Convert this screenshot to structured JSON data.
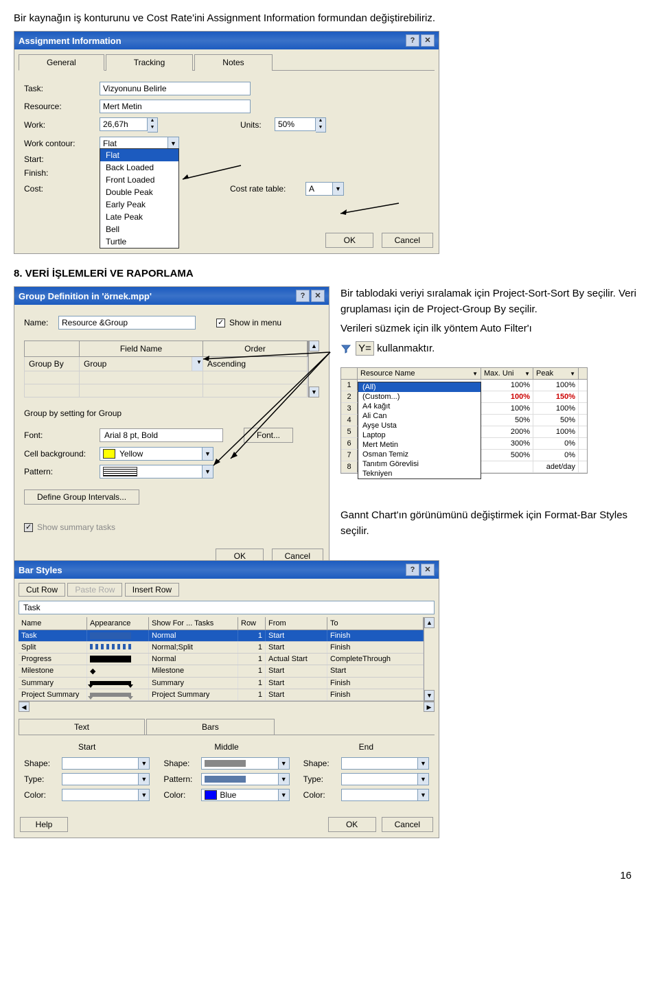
{
  "intro_text": "Bir kaynağın iş konturunu ve Cost Rate'ini Assignment Information formundan değiştirebiliriz.",
  "assignment_dialog": {
    "title": "Assignment Information",
    "tabs": [
      "General",
      "Tracking",
      "Notes"
    ],
    "fields": {
      "task_lbl": "Task:",
      "task_val": "Vizyonunu Belirle",
      "resource_lbl": "Resource:",
      "resource_val": "Mert Metin",
      "work_lbl": "Work:",
      "work_val": "26,67h",
      "units_lbl": "Units:",
      "units_val": "50%",
      "contour_lbl": "Work contour:",
      "contour_val": "Flat",
      "start_lbl": "Start:",
      "finish_lbl": "Finish:",
      "cost_lbl": "Cost:",
      "cost_rate_lbl": "Cost rate table:",
      "cost_rate_val": "A"
    },
    "contour_options": [
      "Flat",
      "Back Loaded",
      "Front Loaded",
      "Double Peak",
      "Early Peak",
      "Late Peak",
      "Bell",
      "Turtle"
    ],
    "ok": "OK",
    "cancel": "Cancel"
  },
  "section8": "8. VERİ İŞLEMLERİ VE RAPORLAMA",
  "group_dialog": {
    "title": "Group Definition in 'örnek.mpp'",
    "name_lbl": "Name:",
    "name_val": "Resource &Group",
    "show_lbl": "Show in menu",
    "grid_headers": [
      "",
      "Field Name",
      "Order"
    ],
    "rows": [
      {
        "lbl": "Group By",
        "field": "Group",
        "order": "Ascending"
      }
    ],
    "group_setting_lbl": "Group by setting for Group",
    "font_lbl": "Font:",
    "font_val": "Arial 8 pt, Bold",
    "font_btn": "Font...",
    "cellbg_lbl": "Cell background:",
    "cellbg_val": "Yellow",
    "cellbg_color": "#ffff00",
    "pattern_lbl": "Pattern:",
    "intervals_btn": "Define Group Intervals...",
    "summary_lbl": "Show summary tasks",
    "ok": "OK",
    "cancel": "Cancel"
  },
  "right_para1": "Bir tablodaki veriyi sıralamak için Project-Sort-Sort By seçilir. Veri gruplaması için de Project-Group By seçilir.",
  "right_para2a": "Verileri süzmek için ilk yöntem Auto Filter'ı",
  "right_para2b": "kullanmaktır.",
  "resource_table": {
    "headers": [
      "",
      "Resource Name",
      "Max. Uni",
      "Peak"
    ],
    "rows": [
      [
        "1",
        "",
        "100%",
        "100%"
      ],
      [
        "2",
        "",
        "100%",
        "150%"
      ],
      [
        "3",
        "",
        "100%",
        "100%"
      ],
      [
        "4",
        "",
        "50%",
        "50%"
      ],
      [
        "5",
        "",
        "200%",
        "100%"
      ],
      [
        "6",
        "",
        "300%",
        "0%"
      ],
      [
        "7",
        "",
        "500%",
        "0%"
      ],
      [
        "8",
        "",
        "",
        "adet/day"
      ]
    ],
    "row2_color": "#cc0000",
    "filter_options": [
      "(All)",
      "(Custom...)",
      "A4 kağıt",
      "Ali Can",
      "Ayşe Usta",
      "Laptop",
      "Mert Metin",
      "Osman Temiz",
      "Tanıtım Görevlisi",
      "Tekniyen"
    ]
  },
  "gantt_text": "Gannt Chart'ın görünümünü değiştirmek için Format-Bar Styles seçilir.",
  "bar_styles": {
    "title": "Bar Styles",
    "cut_btn": "Cut Row",
    "paste_btn": "Paste Row",
    "insert_btn": "Insert Row",
    "task_lbl": "Task",
    "headers": [
      "Name",
      "Appearance",
      "Show For ... Tasks",
      "Row",
      "From",
      "To"
    ],
    "rows": [
      {
        "name": "Task",
        "app_color": "#2a5db0",
        "show": "Normal",
        "row": "1",
        "from": "Start",
        "to": "Finish",
        "selected": true
      },
      {
        "name": "Split",
        "app_style": "dotted",
        "app_color": "#2a5db0",
        "show": "Normal;Split",
        "row": "1",
        "from": "Start",
        "to": "Finish"
      },
      {
        "name": "Progress",
        "app_color": "#000000",
        "show": "Normal",
        "row": "1",
        "from": "Actual Start",
        "to": "CompleteThrough"
      },
      {
        "name": "Milestone",
        "app_shape": "diamond",
        "show": "Milestone",
        "row": "1",
        "from": "Start",
        "to": "Start"
      },
      {
        "name": "Summary",
        "app_shape": "summary",
        "show": "Summary",
        "row": "1",
        "from": "Start",
        "to": "Finish"
      },
      {
        "name": "Project Summary",
        "app_shape": "summary_gray",
        "show": "Project Summary",
        "row": "1",
        "from": "Start",
        "to": "Finish"
      }
    ],
    "tabs": [
      "Text",
      "Bars"
    ],
    "start_lbl": "Start",
    "middle_lbl": "Middle",
    "end_lbl": "End",
    "shape_lbl": "Shape:",
    "type_lbl": "Type:",
    "pattern_lbl": "Pattern:",
    "color_lbl": "Color:",
    "middle_color": "Blue",
    "middle_color_hex": "#0000ff",
    "middle_pattern_color": "#5a7aa8",
    "help": "Help",
    "ok": "OK",
    "cancel": "Cancel"
  },
  "page_number": "16"
}
